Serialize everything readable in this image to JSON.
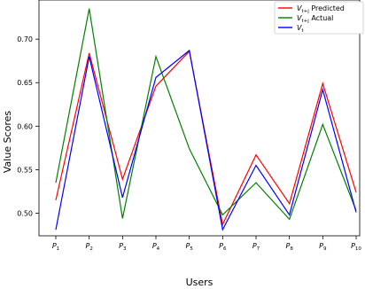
{
  "chart_data": {
    "type": "line",
    "title": "",
    "xlabel": "Users",
    "ylabel": "Value Scores",
    "categories": [
      "P",
      "P",
      "P",
      "P",
      "P",
      "P",
      "P",
      "P",
      "P",
      "P"
    ],
    "category_subscripts": [
      "1",
      "2",
      "3",
      "4",
      "5",
      "6",
      "7",
      "8",
      "9",
      "10"
    ],
    "y_ticks": [
      "0.50",
      "0.55",
      "0.60",
      "0.65",
      "0.70"
    ],
    "y_tick_values": [
      0.5,
      0.55,
      0.6,
      0.65,
      0.7
    ],
    "ylim": [
      0.474,
      0.745
    ],
    "grid": false,
    "legend_position": "top-right",
    "series": [
      {
        "name": "V_{t+j} Predicted",
        "name_base": "V",
        "name_sub": "t+j",
        "name_suffix": " Predicted",
        "color": "#ff0000",
        "values": [
          0.515,
          0.684,
          0.539,
          0.646,
          0.686,
          0.487,
          0.567,
          0.511,
          0.649,
          0.524
        ]
      },
      {
        "name": "V_{t+j} Actual",
        "name_base": "V",
        "name_sub": "t+j",
        "name_suffix": " Actual",
        "color": "#008000",
        "values": [
          0.535,
          0.735,
          0.494,
          0.68,
          0.574,
          0.498,
          0.535,
          0.493,
          0.602,
          0.503
        ]
      },
      {
        "name": "V_t",
        "name_base": "V",
        "name_sub": "t",
        "name_suffix": "",
        "color": "#0000ff",
        "values": [
          0.481,
          0.68,
          0.518,
          0.656,
          0.687,
          0.481,
          0.555,
          0.498,
          0.642,
          0.501
        ]
      }
    ]
  }
}
